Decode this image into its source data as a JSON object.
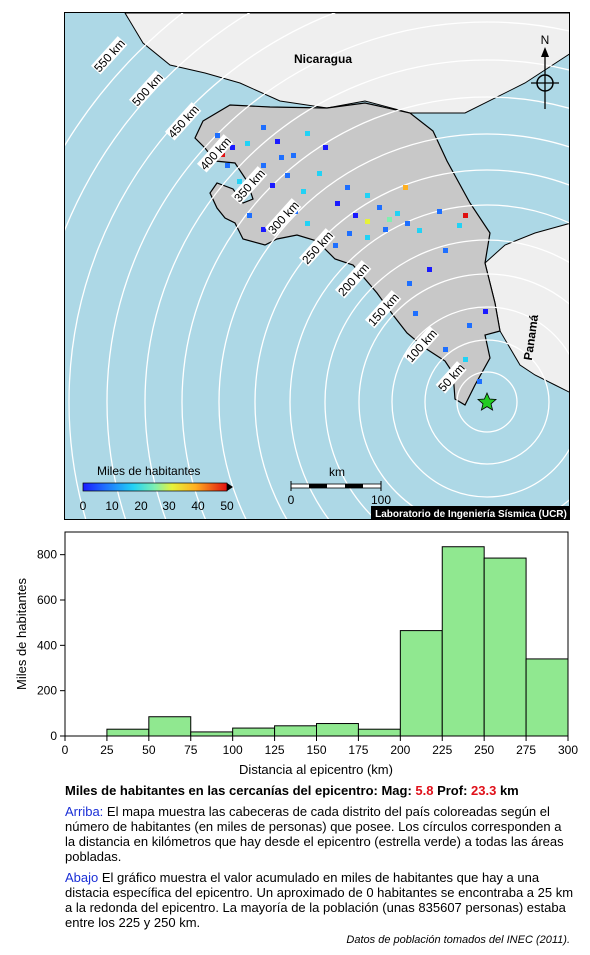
{
  "map": {
    "country_labels": {
      "nicaragua": "Nicaragua",
      "panama": "Panamá"
    },
    "north_label": "N",
    "distance_rings": [
      "50 km",
      "100 km",
      "150 km",
      "200 km",
      "250 km",
      "300 km",
      "350 km",
      "400 km",
      "450 km",
      "500 km",
      "550 km"
    ],
    "legend": {
      "title": "Miles de habitantes",
      "ticks": [
        "0",
        "10",
        "20",
        "30",
        "40",
        "50"
      ]
    },
    "scale_bar": {
      "unit": "km",
      "ticks": [
        "0",
        "100"
      ]
    },
    "credit": "Laboratorio de Ingeniería Sísmica (UCR)",
    "colors": {
      "sea": "#add8e6",
      "land": "#c8c8c8",
      "neighbor": "#efefef",
      "epicenter": "#22cc22"
    }
  },
  "chart_data": {
    "type": "bar",
    "xlabel": "Distancia al epicentro (km)",
    "ylabel": "Miles de habitantes",
    "bin_edges": [
      25,
      50,
      75,
      100,
      125,
      150,
      175,
      200,
      225,
      250,
      275,
      300
    ],
    "values": [
      30,
      85,
      18,
      35,
      45,
      55,
      30,
      465,
      835,
      785,
      340
    ],
    "xlim": [
      0,
      300
    ],
    "ylim": [
      0,
      900
    ],
    "x_ticks": [
      0,
      25,
      50,
      75,
      100,
      125,
      150,
      175,
      200,
      225,
      250,
      275,
      300
    ],
    "y_ticks": [
      0,
      200,
      400,
      600,
      800
    ],
    "bar_color": "#90e890",
    "grid": false
  },
  "caption": {
    "title_prefix": "Miles de habitantes en las cercanías del epicentro: Mag: ",
    "mag": "5.8",
    "prof_label": " Prof: ",
    "prof": "23.3",
    "prof_unit": " km",
    "p1_lead": "Arriba:",
    "p1_text": " El mapa muestra las cabeceras de cada distrito del país coloreadas según el número de habitantes (en miles de personas) que posee. Los círculos corresponden a la distancia en kilómetros que hay desde el epicentro (estrella verde) a todas las áreas pobladas.",
    "p2_lead": "Abajo",
    "p2_text": " El gráfico muestra el valor acumulado en miles de habitantes que hay a una distacia específica del epicentro. Un aproximado de 0 habitantes se encontraba a 25 km a la redonda del epicentro. La mayoría de la población (unas 835607 personas) estaba entre los 225 y 250 km.",
    "source": "Datos de población tomados del INEC (2011)."
  }
}
